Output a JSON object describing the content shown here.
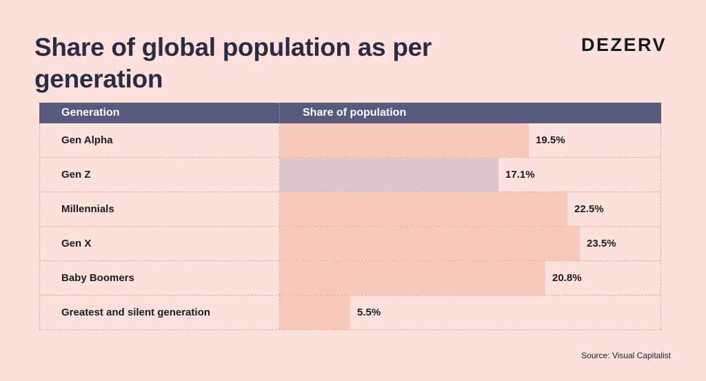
{
  "header": {
    "title": "Share of global population as per generation",
    "logo": "DEZERV"
  },
  "table": {
    "col_generation": "Generation",
    "col_share": "Share of population"
  },
  "colors": {
    "bar": "#f7c9ba",
    "bar_highlight": "#dcc6cb",
    "header_bg": "#565b7b",
    "background": "#fde1dc"
  },
  "chart_data": {
    "type": "bar",
    "orientation": "horizontal",
    "title": "Share of global population as per generation",
    "xlabel": "",
    "ylabel": "",
    "categories": [
      "Gen Alpha",
      "Gen Z",
      "Millennials",
      "Gen X",
      "Baby Boomers",
      "Greatest and silent generation"
    ],
    "values": [
      19.5,
      17.1,
      22.5,
      23.5,
      20.8,
      5.5
    ],
    "value_labels": [
      "19.5%",
      "17.1%",
      "22.5%",
      "23.5%",
      "20.8%",
      "5.5%"
    ],
    "highlight_index": 1,
    "xlim": [
      0,
      29.8
    ],
    "grid": false
  },
  "footer": {
    "source": "Source: Visual Capitalist"
  }
}
